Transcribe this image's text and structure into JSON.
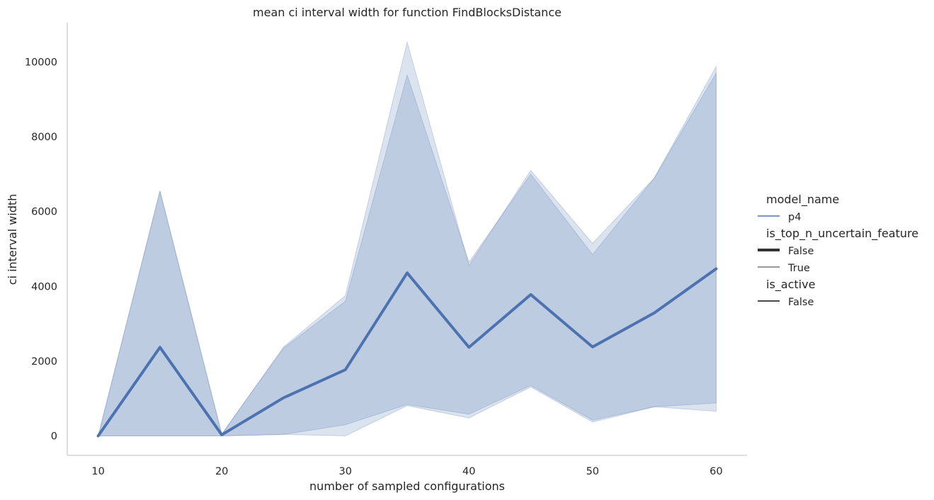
{
  "chart_data": {
    "type": "line",
    "title": "mean ci interval width for function FindBlocksDistance",
    "xlabel": "number of sampled configurations",
    "ylabel": "ci interval width",
    "x": [
      10,
      15,
      20,
      25,
      30,
      35,
      40,
      45,
      50,
      55,
      60
    ],
    "xticks": [
      10,
      20,
      30,
      40,
      50,
      60
    ],
    "yticks": [
      0,
      2000,
      4000,
      6000,
      8000,
      10000
    ],
    "xticklabels": [
      "10",
      "20",
      "30",
      "40",
      "50",
      "60"
    ],
    "yticklabels": [
      "0",
      "2000",
      "4000",
      "6000",
      "8000",
      "10000"
    ],
    "xlim": [
      7.5,
      62.5
    ],
    "ylim": [
      -520,
      11050
    ],
    "grid": false,
    "legend_position": "right",
    "series": [
      {
        "name": "False",
        "values": [
          0,
          2370,
          30,
          1020,
          1770,
          4360,
          2370,
          3780,
          2380,
          3290,
          4470
        ],
        "band_lower": [
          0,
          0,
          0,
          40,
          300,
          840,
          580,
          1350,
          420,
          780,
          880
        ],
        "band_upper": [
          0,
          6550,
          50,
          2350,
          3600,
          9650,
          4650,
          7000,
          4850,
          6900,
          9700
        ],
        "color": "#4c72b0",
        "linewidth": "thick"
      },
      {
        "name": "True",
        "band_lower": [
          0,
          0,
          0,
          40,
          0,
          810,
          480,
          1310,
          370,
          780,
          660
        ],
        "band_upper": [
          0,
          6550,
          50,
          2380,
          3750,
          10530,
          4560,
          7100,
          5150,
          6900,
          9880
        ],
        "color": "#4c72b0",
        "linewidth": "thin"
      }
    ],
    "legend": [
      {
        "kind": "title",
        "label": "model_name"
      },
      {
        "kind": "entry",
        "label": "p4",
        "color": "#4c72b0",
        "stroke": 1.5
      },
      {
        "kind": "title",
        "label": "is_top_n_uncertain_feature"
      },
      {
        "kind": "entry",
        "label": "False",
        "color": "#333333",
        "stroke": 4
      },
      {
        "kind": "entry",
        "label": "True",
        "color": "#333333",
        "stroke": 1
      },
      {
        "kind": "title",
        "label": "is_active"
      },
      {
        "kind": "entry",
        "label": "False",
        "color": "#333333",
        "stroke": 1.8
      }
    ],
    "colors": {
      "line": "#4c72b0",
      "band": "#4c72b0",
      "axis": "#cccccc",
      "text": "#262626"
    }
  }
}
